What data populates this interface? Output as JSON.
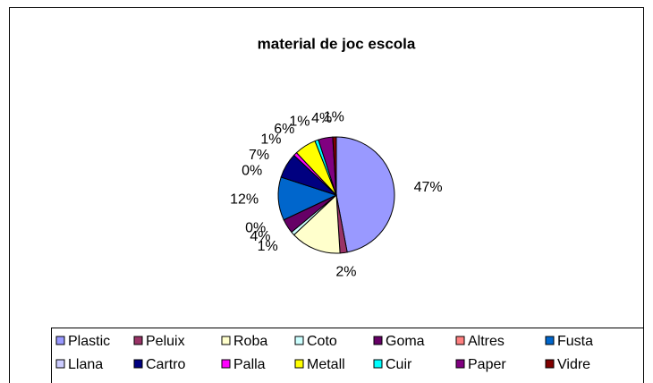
{
  "chart_data": {
    "type": "pie",
    "title": "material de joc escola",
    "categories": [
      "Plastic",
      "Peluix",
      "Roba",
      "Coto",
      "Goma",
      "Altres",
      "Fusta",
      "Llana",
      "Cartro",
      "Palla",
      "Metall",
      "Cuir",
      "Paper",
      "Vidre"
    ],
    "values": [
      47,
      2,
      14,
      1,
      4,
      0,
      12,
      0,
      7,
      1,
      6,
      1,
      4,
      1
    ],
    "value_labels": [
      "47%",
      "2%",
      null,
      "1%",
      "4%",
      "0%",
      "12%",
      "0%",
      "7%",
      "1%",
      "6%",
      "1%",
      "4%",
      "1%"
    ],
    "colors": [
      "#9999FF",
      "#993366",
      "#FFFFCC",
      "#CCFFFF",
      "#660066",
      "#FF8080",
      "#0066CC",
      "#CCCCFF",
      "#000080",
      "#FF00FF",
      "#FFFF00",
      "#00FFFF",
      "#800080",
      "#800000"
    ],
    "legend": "bottom"
  }
}
